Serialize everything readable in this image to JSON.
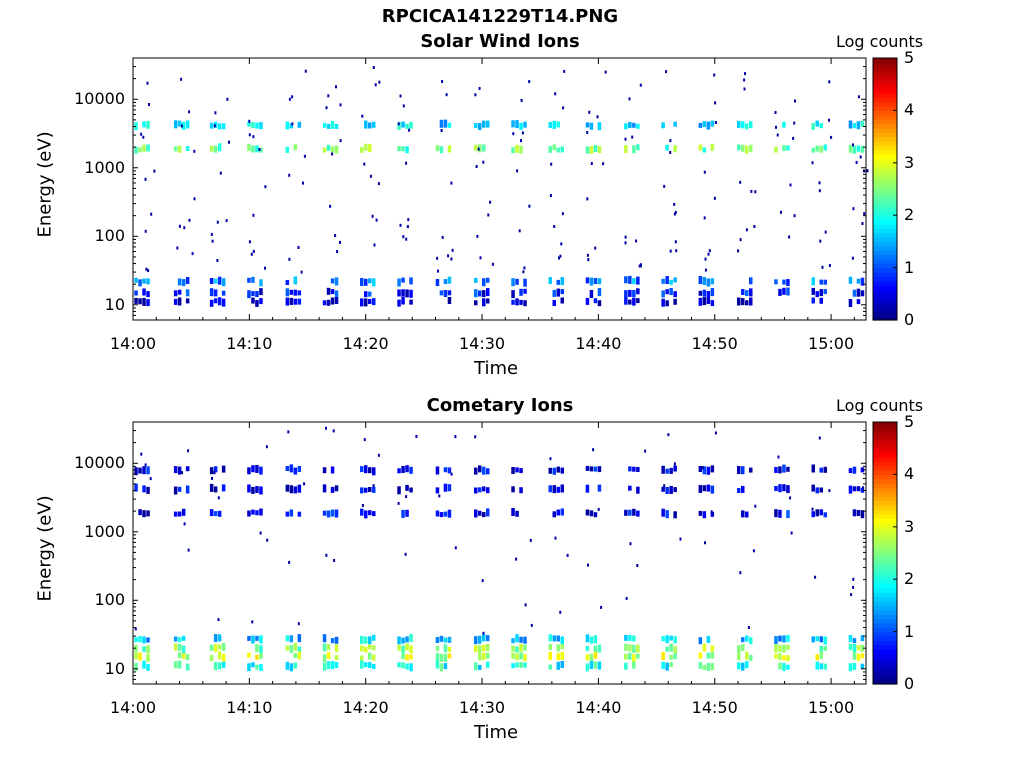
{
  "figure_title": "RPCICA141229T14.PNG",
  "chart_data": [
    {
      "type": "heatmap",
      "title": "Solar Wind Ions",
      "xlabel": "Time",
      "ylabel": "Energy (eV)",
      "x_ticks": [
        "14:00",
        "14:10",
        "14:20",
        "14:30",
        "14:40",
        "14:50",
        "15:00"
      ],
      "x_range_minutes": [
        0,
        63
      ],
      "y_scale": "log",
      "y_ticks": [
        "10",
        "100",
        "1000",
        "10000"
      ],
      "y_range_eV": [
        6,
        40000
      ],
      "colorbar": {
        "title": "Log counts",
        "range": [
          0,
          5
        ],
        "ticks": [
          "0",
          "1",
          "2",
          "3",
          "4",
          "5"
        ],
        "colormap": "jet"
      },
      "sweep_times_min": [
        0.8,
        4.2,
        7.3,
        10.5,
        13.8,
        17.0,
        20.2,
        23.4,
        26.7,
        30.0,
        33.2,
        36.4,
        39.6,
        42.9,
        46.1,
        49.3,
        52.6,
        55.8,
        59.0,
        62.2
      ],
      "bands": [
        {
          "energy_eV": 1900,
          "log_counts": 2.4
        },
        {
          "energy_eV": 4200,
          "log_counts": 1.7
        },
        {
          "energy_eV": 22,
          "log_counts": 1.2
        },
        {
          "energy_eV": 15,
          "log_counts": 0.7
        },
        {
          "energy_eV": 11,
          "log_counts": 0.3
        }
      ]
    },
    {
      "type": "heatmap",
      "title": "Cometary Ions",
      "xlabel": "Time",
      "ylabel": "Energy (eV)",
      "x_ticks": [
        "14:00",
        "14:10",
        "14:20",
        "14:30",
        "14:40",
        "14:50",
        "15:00"
      ],
      "x_range_minutes": [
        0,
        63
      ],
      "y_scale": "log",
      "y_ticks": [
        "10",
        "100",
        "1000",
        "10000"
      ],
      "y_range_eV": [
        6,
        40000
      ],
      "colorbar": {
        "title": "Log counts",
        "range": [
          0,
          5
        ],
        "ticks": [
          "0",
          "1",
          "2",
          "3",
          "4",
          "5"
        ],
        "colormap": "jet"
      },
      "sweep_times_min": [
        0.8,
        4.2,
        7.3,
        10.5,
        13.8,
        17.0,
        20.2,
        23.4,
        26.7,
        30.0,
        33.2,
        36.4,
        39.6,
        42.9,
        46.1,
        49.3,
        52.6,
        55.8,
        59.0,
        62.2
      ],
      "bands": [
        {
          "energy_eV": 1850,
          "log_counts": 0.6
        },
        {
          "energy_eV": 8000,
          "log_counts": 0.5
        },
        {
          "energy_eV": 4200,
          "log_counts": 0.4
        },
        {
          "energy_eV": 27,
          "log_counts": 1.6
        },
        {
          "energy_eV": 20,
          "log_counts": 2.5
        },
        {
          "energy_eV": 15,
          "log_counts": 2.8
        },
        {
          "energy_eV": 11,
          "log_counts": 2.0
        }
      ]
    }
  ]
}
